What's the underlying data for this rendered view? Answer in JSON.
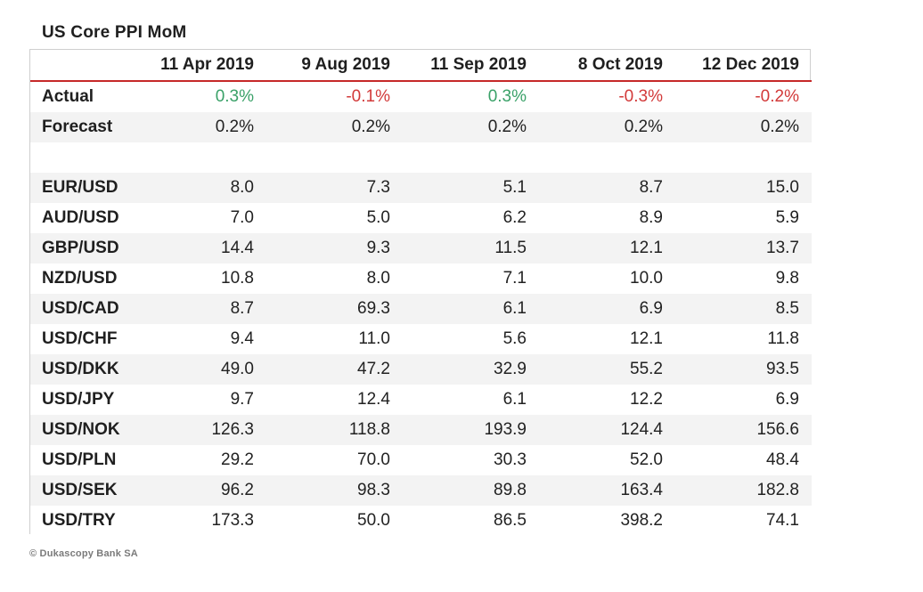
{
  "title": "US Core PPI MoM",
  "footer": "© Dukascopy Bank SA",
  "colors": {
    "header_rule": "#c62828",
    "positive": "#3aa168",
    "negative": "#d23a3a",
    "band": "#f3f3f3"
  },
  "chart_data": {
    "type": "table",
    "title": "US Core PPI MoM",
    "columns": [
      "",
      "11 Apr 2019",
      "9 Aug 2019",
      "11 Sep 2019",
      "8 Oct 2019",
      "12 Dec 2019"
    ],
    "rows": [
      {
        "label": "Actual",
        "values": [
          "0.3%",
          "-0.1%",
          "0.3%",
          "-0.3%",
          "-0.2%"
        ],
        "kind": "actual"
      },
      {
        "label": "Forecast",
        "values": [
          "0.2%",
          "0.2%",
          "0.2%",
          "0.2%",
          "0.2%"
        ],
        "kind": "forecast"
      },
      {
        "label": "",
        "values": [
          "",
          "",
          "",
          "",
          ""
        ],
        "kind": "spacer"
      },
      {
        "label": "EUR/USD",
        "values": [
          "8.0",
          "7.3",
          "5.1",
          "8.7",
          "15.0"
        ]
      },
      {
        "label": "AUD/USD",
        "values": [
          "7.0",
          "5.0",
          "6.2",
          "8.9",
          "5.9"
        ]
      },
      {
        "label": "GBP/USD",
        "values": [
          "14.4",
          "9.3",
          "11.5",
          "12.1",
          "13.7"
        ]
      },
      {
        "label": "NZD/USD",
        "values": [
          "10.8",
          "8.0",
          "7.1",
          "10.0",
          "9.8"
        ]
      },
      {
        "label": "USD/CAD",
        "values": [
          "8.7",
          "69.3",
          "6.1",
          "6.9",
          "8.5"
        ]
      },
      {
        "label": "USD/CHF",
        "values": [
          "9.4",
          "11.0",
          "5.6",
          "12.1",
          "11.8"
        ]
      },
      {
        "label": "USD/DKK",
        "values": [
          "49.0",
          "47.2",
          "32.9",
          "55.2",
          "93.5"
        ]
      },
      {
        "label": "USD/JPY",
        "values": [
          "9.7",
          "12.4",
          "6.1",
          "12.2",
          "6.9"
        ]
      },
      {
        "label": "USD/NOK",
        "values": [
          "126.3",
          "118.8",
          "193.9",
          "124.4",
          "156.6"
        ]
      },
      {
        "label": "USD/PLN",
        "values": [
          "29.2",
          "70.0",
          "30.3",
          "52.0",
          "48.4"
        ]
      },
      {
        "label": "USD/SEK",
        "values": [
          "96.2",
          "98.3",
          "89.8",
          "163.4",
          "182.8"
        ]
      },
      {
        "label": "USD/TRY",
        "values": [
          "173.3",
          "50.0",
          "86.5",
          "398.2",
          "74.1"
        ]
      }
    ]
  }
}
